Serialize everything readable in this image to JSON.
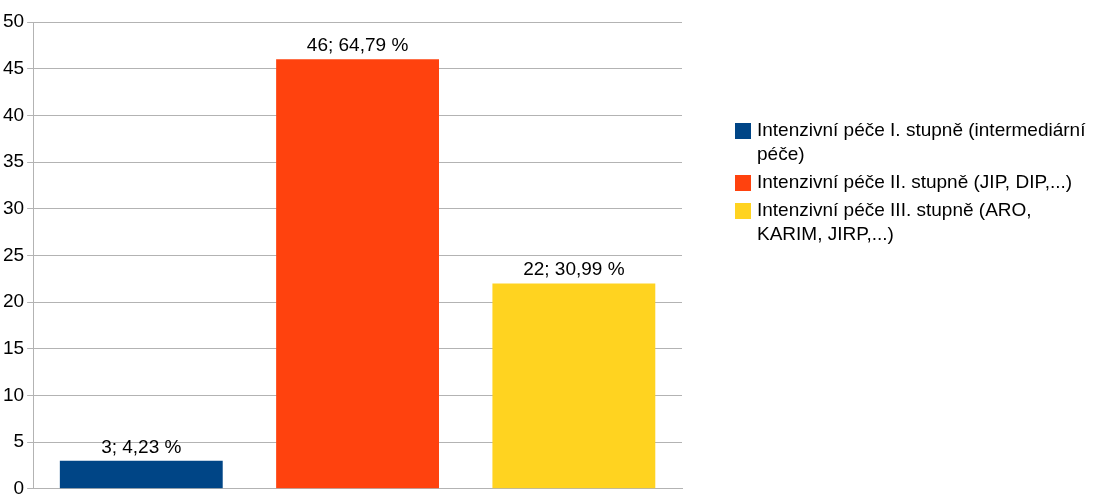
{
  "chart_data": {
    "type": "bar",
    "categories": [
      null
    ],
    "series": [
      {
        "name": "Intenzivní péče I. stupně (intermediární péče)",
        "color": "#004586",
        "values": [
          3
        ],
        "value_labels": [
          "3; 4,23 %"
        ]
      },
      {
        "name": "Intenzivní péče II. stupně (JIP, DIP,...)",
        "color": "#ff420e",
        "values": [
          46
        ],
        "value_labels": [
          "46; 64,79 %"
        ]
      },
      {
        "name": "Intenzivní péče III. stupně (ARO, KARIM, JIRP,...)",
        "color": "#ffd320",
        "values": [
          22
        ],
        "value_labels": [
          "22; 30,99 %"
        ]
      }
    ],
    "ylim": [
      0,
      50
    ],
    "yticks": [
      0,
      5,
      10,
      15,
      20,
      25,
      30,
      35,
      40,
      45,
      50
    ],
    "grid": "y",
    "legend": "right"
  }
}
